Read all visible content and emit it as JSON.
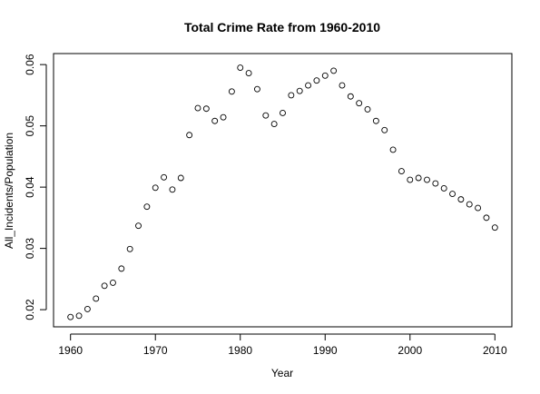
{
  "chart_data": {
    "type": "scatter",
    "title": "Total Crime Rate from 1960-2010",
    "xlabel": "Year",
    "ylabel": "All_Incidents/Population",
    "xlim": [
      1958,
      2012
    ],
    "ylim": [
      0.0172,
      0.0618
    ],
    "x_ticks": [
      "1960",
      "1970",
      "1980",
      "1990",
      "2000",
      "2010"
    ],
    "y_ticks": [
      "0.02",
      "0.03",
      "0.04",
      "0.05",
      "0.06"
    ],
    "grid": false,
    "marker": "open-circle",
    "x": [
      1960,
      1961,
      1962,
      1963,
      1964,
      1965,
      1966,
      1967,
      1968,
      1969,
      1970,
      1971,
      1972,
      1973,
      1974,
      1975,
      1976,
      1977,
      1978,
      1979,
      1980,
      1981,
      1982,
      1983,
      1984,
      1985,
      1986,
      1987,
      1988,
      1989,
      1990,
      1991,
      1992,
      1993,
      1994,
      1995,
      1996,
      1997,
      1998,
      1999,
      2000,
      2001,
      2002,
      2003,
      2004,
      2005,
      2006,
      2007,
      2008,
      2009,
      2010
    ],
    "y": [
      0.0188,
      0.019,
      0.0201,
      0.0218,
      0.0239,
      0.0244,
      0.0267,
      0.0299,
      0.0337,
      0.0368,
      0.0399,
      0.0416,
      0.0396,
      0.0415,
      0.0485,
      0.0529,
      0.0528,
      0.0508,
      0.0514,
      0.0556,
      0.0595,
      0.0586,
      0.056,
      0.0517,
      0.0503,
      0.0521,
      0.055,
      0.0557,
      0.0566,
      0.0574,
      0.0582,
      0.059,
      0.0566,
      0.0548,
      0.0537,
      0.0527,
      0.0508,
      0.0493,
      0.0461,
      0.0426,
      0.0412,
      0.0415,
      0.0412,
      0.0406,
      0.0398,
      0.0389,
      0.038,
      0.0372,
      0.0366,
      0.035,
      0.0334
    ]
  }
}
